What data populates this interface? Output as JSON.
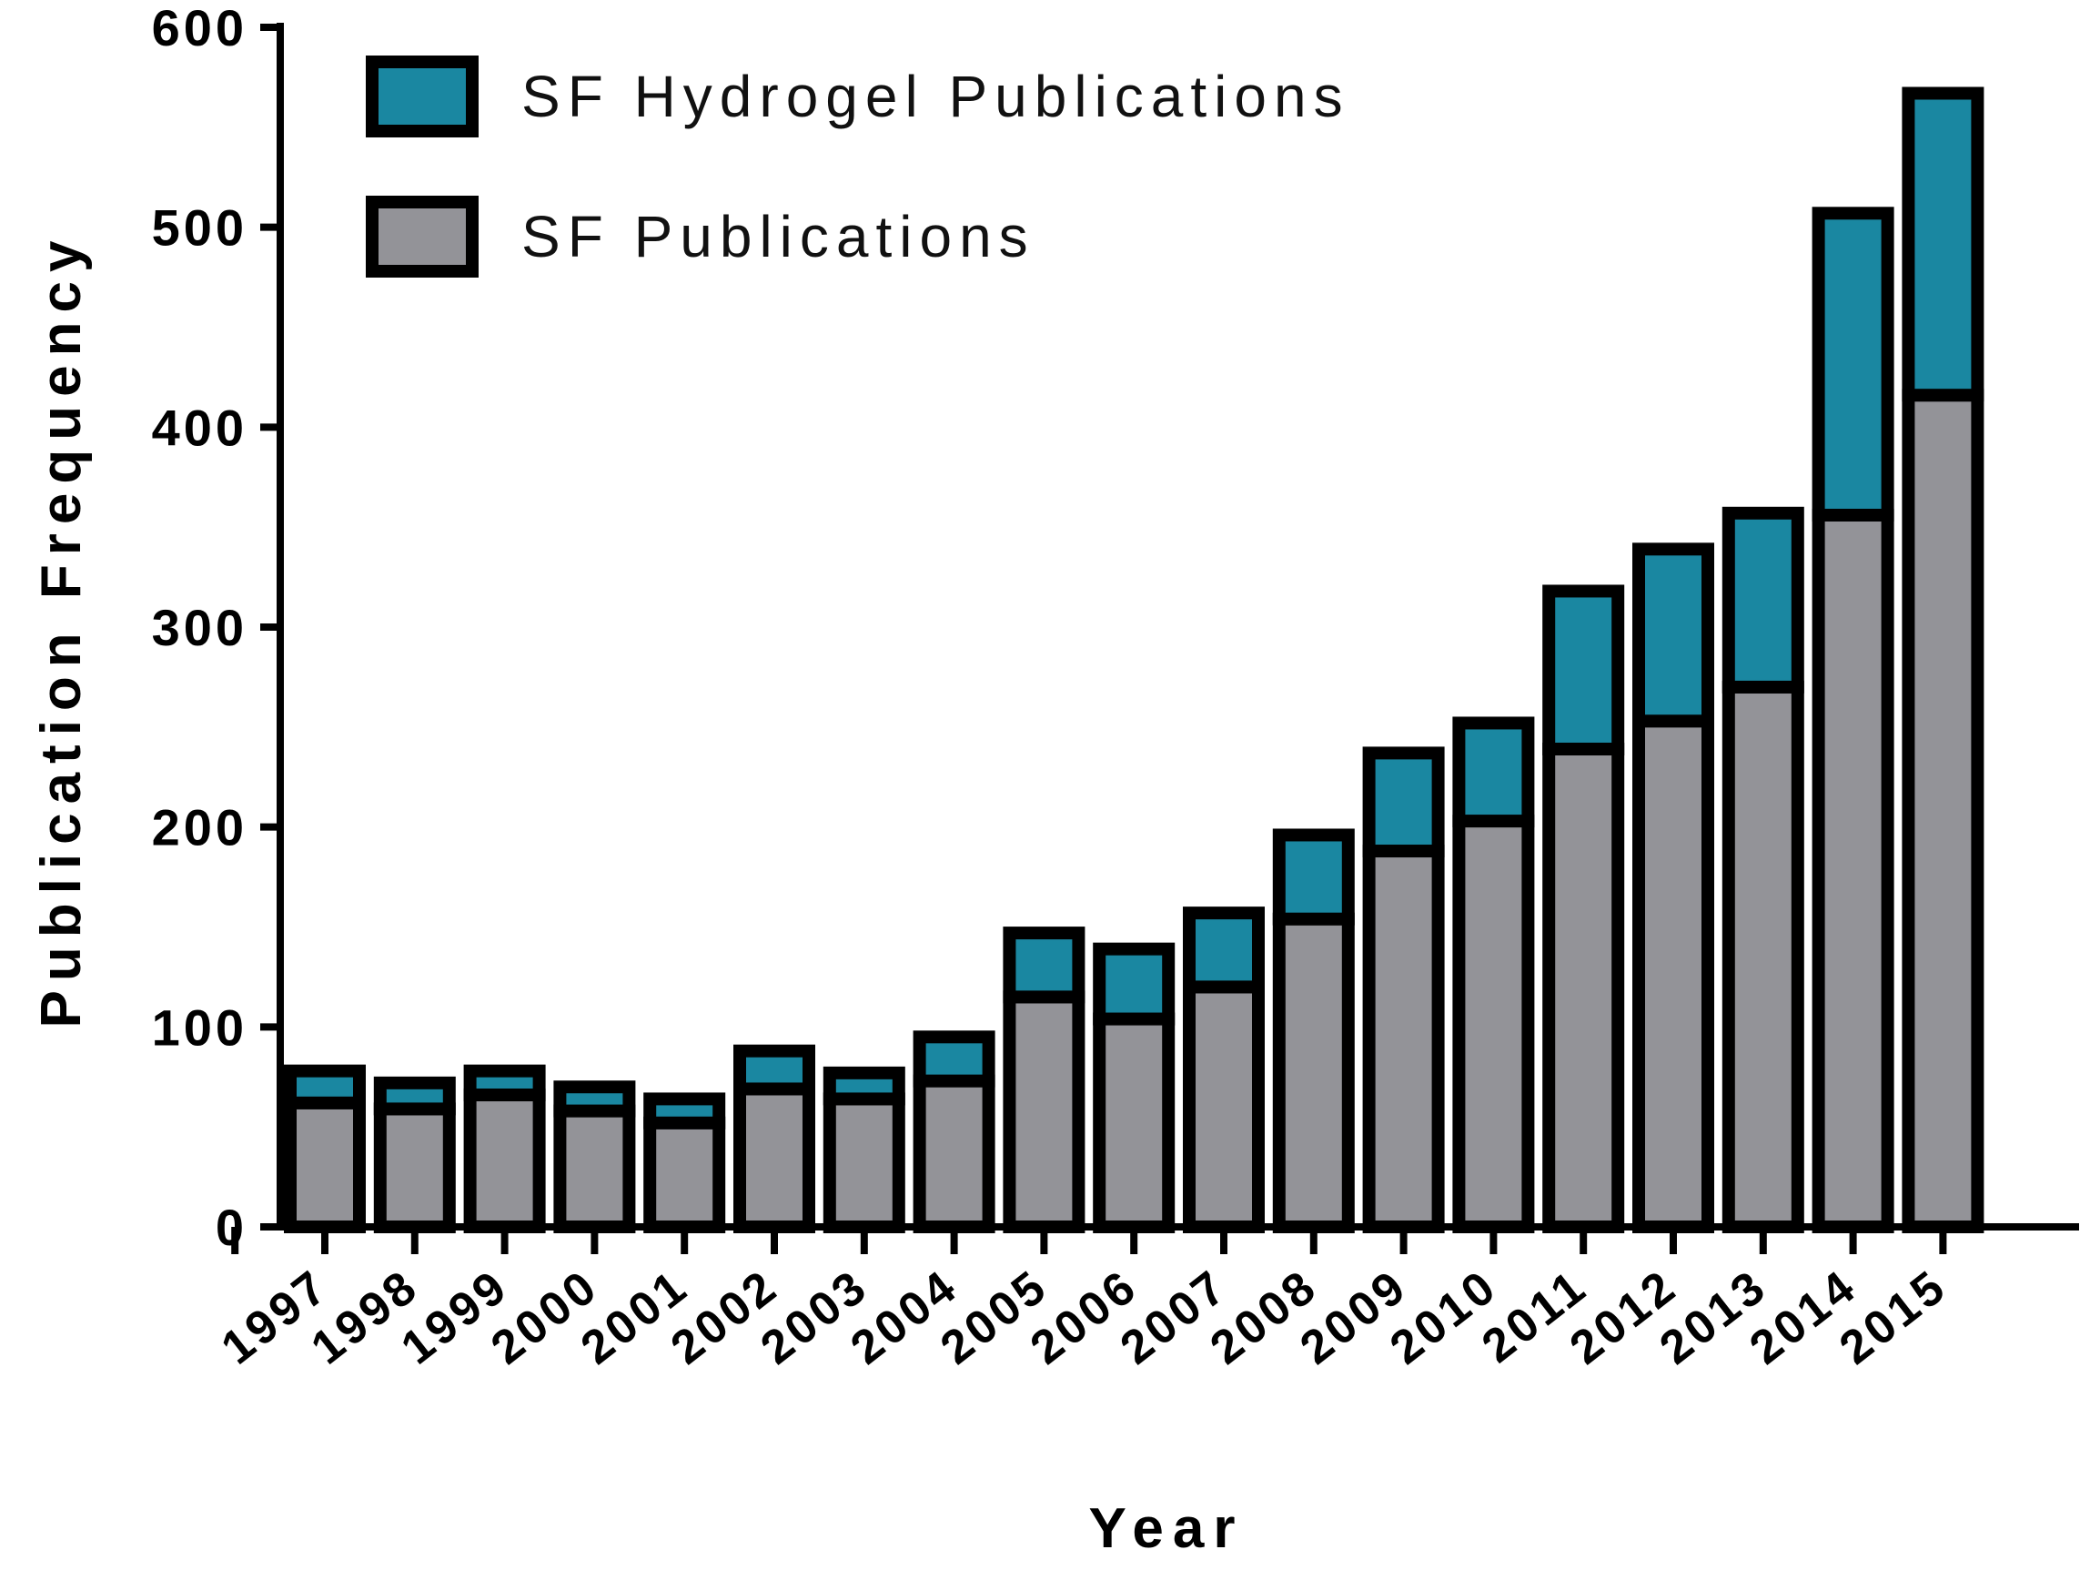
{
  "chart_data": {
    "type": "bar",
    "stacked": true,
    "xlabel": "Year",
    "ylabel": "Publication Frequency",
    "ylim": [
      0,
      600
    ],
    "yticks": [
      0,
      100,
      200,
      300,
      400,
      500,
      600
    ],
    "grid": false,
    "legend_position": "top-left",
    "categories": [
      "1997",
      "1998",
      "1999",
      "2000",
      "2001",
      "2002",
      "2003",
      "2004",
      "2005",
      "2006",
      "2007",
      "2008",
      "2009",
      "2010",
      "2011",
      "2012",
      "2013",
      "2014",
      "2015"
    ],
    "series": [
      {
        "name": "SF Publications",
        "color": "#939398",
        "values": [
          62,
          59,
          66,
          58,
          52,
          69,
          64,
          73,
          115,
          104,
          120,
          154,
          188,
          203,
          239,
          253,
          270,
          356,
          416
        ]
      },
      {
        "name": "SF Hydrogel Publications",
        "color": "#1a87a1",
        "values": [
          16,
          13,
          12,
          12,
          12,
          19,
          13,
          22,
          32,
          35,
          37,
          42,
          49,
          49,
          79,
          86,
          87,
          151,
          151
        ]
      }
    ],
    "totals": [
      78,
      72,
      78,
      70,
      64,
      88,
      77,
      95,
      147,
      139,
      157,
      196,
      237,
      252,
      318,
      339,
      357,
      507,
      567
    ]
  }
}
